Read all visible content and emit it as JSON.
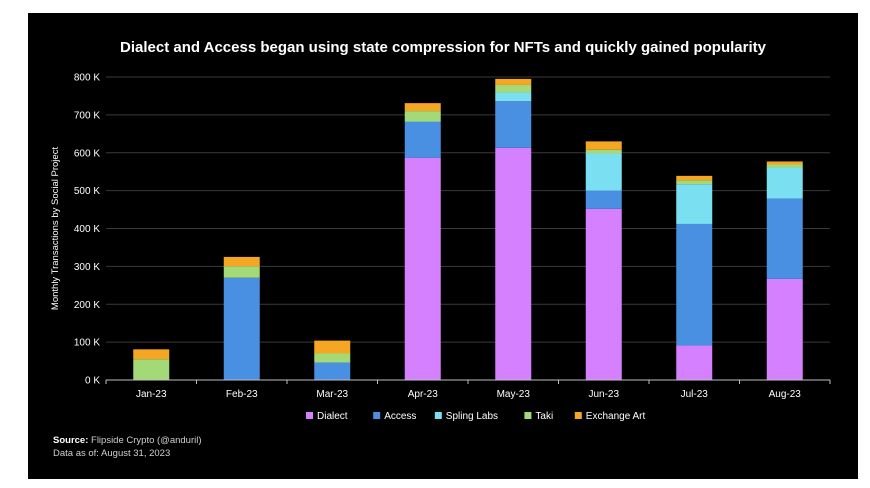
{
  "chart_data": {
    "type": "bar",
    "stacked": true,
    "title": "Dialect and Access began using state compression for NFTs and quickly gained popularity",
    "xlabel": "",
    "ylabel": "Monthly Transactions by Social Project",
    "ylim": [
      0,
      800000
    ],
    "yticks": [
      0,
      100000,
      200000,
      300000,
      400000,
      500000,
      600000,
      700000,
      800000
    ],
    "ytick_labels": [
      "0 K",
      "100 K",
      "200 K",
      "300 K",
      "400 K",
      "500 K",
      "600 K",
      "700 K",
      "800 K"
    ],
    "grid": true,
    "legend_position": "bottom",
    "categories": [
      "Jan-23",
      "Feb-23",
      "Mar-23",
      "Apr-23",
      "May-23",
      "Jun-23",
      "Jul-23",
      "Aug-23"
    ],
    "series": [
      {
        "name": "Dialect",
        "color": "#d580ff",
        "values": [
          0,
          0,
          0,
          587000,
          613000,
          452000,
          91000,
          267000
        ]
      },
      {
        "name": "Access",
        "color": "#4a90e2",
        "values": [
          0,
          270000,
          46000,
          94000,
          123000,
          48000,
          321000,
          212000
        ]
      },
      {
        "name": "Spling Labs",
        "color": "#7bdff2",
        "values": [
          0,
          0,
          0,
          2000,
          23000,
          98000,
          105000,
          82000
        ]
      },
      {
        "name": "Taki",
        "color": "#a3d977",
        "values": [
          55000,
          30000,
          24000,
          27000,
          20000,
          10000,
          10000,
          8000
        ]
      },
      {
        "name": "Exchange Art",
        "color": "#f5a623",
        "values": [
          26000,
          25000,
          34000,
          21000,
          16000,
          22000,
          12000,
          8000
        ]
      }
    ]
  },
  "footer": {
    "source_label": "Source:",
    "source_text": "Flipside Crypto (@anduril)",
    "data_as_of": "Data as of: August 31, 2023"
  },
  "colors": {
    "background": "#000000",
    "text": "#ffffff",
    "grid": "#3a3a3a",
    "axis": "#bfbfbf"
  }
}
